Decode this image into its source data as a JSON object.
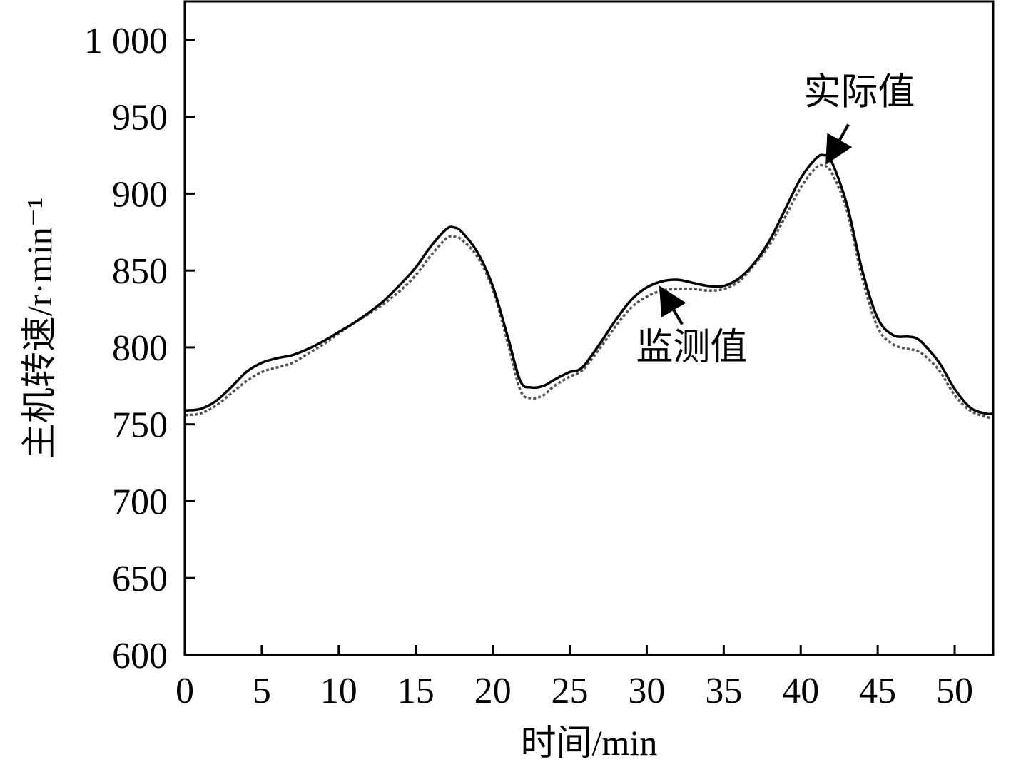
{
  "chart_data": {
    "type": "line",
    "title": "",
    "xlabel": "时间/min",
    "ylabel": "主机转速/r·min⁻¹",
    "xlim": [
      0,
      52.5
    ],
    "ylim": [
      600,
      1025
    ],
    "x_ticks": [
      0,
      5,
      10,
      15,
      20,
      25,
      30,
      35,
      40,
      45,
      50
    ],
    "y_ticks": [
      600,
      650,
      700,
      750,
      800,
      850,
      900,
      950,
      1000
    ],
    "x_tick_labels": [
      "0",
      "5",
      "10",
      "15",
      "20",
      "25",
      "30",
      "35",
      "40",
      "45",
      "50"
    ],
    "y_tick_labels": [
      "600",
      "650",
      "700",
      "750",
      "800",
      "850",
      "900",
      "950",
      "1 000"
    ],
    "grid": false,
    "legend": "none",
    "series": [
      {
        "key": "actual",
        "color": "#000000",
        "style": "solid",
        "points": [
          [
            0,
            759
          ],
          [
            1,
            760
          ],
          [
            2,
            765
          ],
          [
            3,
            774
          ],
          [
            4,
            784
          ],
          [
            5,
            790
          ],
          [
            6,
            793
          ],
          [
            7,
            795
          ],
          [
            8,
            799
          ],
          [
            9,
            804
          ],
          [
            10,
            810
          ],
          [
            11,
            816
          ],
          [
            12,
            823
          ],
          [
            13,
            831
          ],
          [
            14,
            841
          ],
          [
            15,
            852
          ],
          [
            16,
            866
          ],
          [
            17,
            877
          ],
          [
            17.5,
            878
          ],
          [
            18,
            875
          ],
          [
            19,
            862
          ],
          [
            20,
            840
          ],
          [
            21,
            806
          ],
          [
            21.8,
            778
          ],
          [
            22.5,
            774
          ],
          [
            23.3,
            775
          ],
          [
            24,
            779
          ],
          [
            25,
            784
          ],
          [
            25.5,
            785
          ],
          [
            26,
            789
          ],
          [
            27,
            803
          ],
          [
            28,
            818
          ],
          [
            29,
            831
          ],
          [
            30,
            839
          ],
          [
            31,
            843
          ],
          [
            32,
            844
          ],
          [
            33,
            842
          ],
          [
            34,
            840
          ],
          [
            35,
            840
          ],
          [
            36,
            845
          ],
          [
            37,
            855
          ],
          [
            38,
            870
          ],
          [
            39,
            890
          ],
          [
            40,
            910
          ],
          [
            41,
            923
          ],
          [
            41.5,
            925
          ],
          [
            42,
            921
          ],
          [
            43,
            893
          ],
          [
            44,
            850
          ],
          [
            45,
            819
          ],
          [
            46,
            808
          ],
          [
            47,
            807
          ],
          [
            47.5,
            806
          ],
          [
            48,
            802
          ],
          [
            49,
            790
          ],
          [
            50,
            773
          ],
          [
            51,
            761
          ],
          [
            52,
            757
          ],
          [
            52.5,
            757
          ]
        ]
      },
      {
        "key": "monitored",
        "color": "#555555",
        "style": "dotted",
        "points": [
          [
            0,
            756
          ],
          [
            1,
            757
          ],
          [
            2,
            762
          ],
          [
            3,
            770
          ],
          [
            4,
            778
          ],
          [
            5,
            784
          ],
          [
            6,
            787
          ],
          [
            7,
            790
          ],
          [
            8,
            796
          ],
          [
            9,
            802
          ],
          [
            10,
            809
          ],
          [
            11,
            816
          ],
          [
            12,
            822
          ],
          [
            13,
            829
          ],
          [
            14,
            837
          ],
          [
            15,
            847
          ],
          [
            16,
            860
          ],
          [
            17,
            871
          ],
          [
            17.5,
            872
          ],
          [
            18,
            870
          ],
          [
            19,
            859
          ],
          [
            20,
            838
          ],
          [
            21,
            802
          ],
          [
            21.8,
            772
          ],
          [
            22.5,
            767
          ],
          [
            23.3,
            769
          ],
          [
            24,
            775
          ],
          [
            25,
            781
          ],
          [
            25.5,
            783
          ],
          [
            26,
            787
          ],
          [
            27,
            800
          ],
          [
            28,
            814
          ],
          [
            29,
            826
          ],
          [
            30,
            833
          ],
          [
            31,
            837
          ],
          [
            32,
            838
          ],
          [
            33,
            838
          ],
          [
            34,
            837
          ],
          [
            35,
            838
          ],
          [
            36,
            843
          ],
          [
            37,
            854
          ],
          [
            38,
            867
          ],
          [
            39,
            885
          ],
          [
            40,
            904
          ],
          [
            41,
            917
          ],
          [
            41.5,
            918
          ],
          [
            42,
            914
          ],
          [
            43,
            889
          ],
          [
            44,
            845
          ],
          [
            45,
            813
          ],
          [
            46,
            802
          ],
          [
            47,
            799
          ],
          [
            47.5,
            798
          ],
          [
            48,
            795
          ],
          [
            49,
            785
          ],
          [
            50,
            769
          ],
          [
            51,
            759
          ],
          [
            52,
            755
          ],
          [
            52.5,
            754
          ]
        ]
      }
    ],
    "annotations": [
      {
        "key": "actual-label",
        "text": "实际值",
        "text_at": [
          40.2,
          958
        ],
        "arrow_from": [
          43.1,
          945
        ],
        "arrow_to": [
          41.8,
          922
        ]
      },
      {
        "key": "monitored-label",
        "text": "监测值",
        "text_at": [
          29.3,
          792
        ],
        "arrow_from": [
          32.3,
          815
        ],
        "arrow_to": [
          31.0,
          837
        ]
      }
    ]
  }
}
